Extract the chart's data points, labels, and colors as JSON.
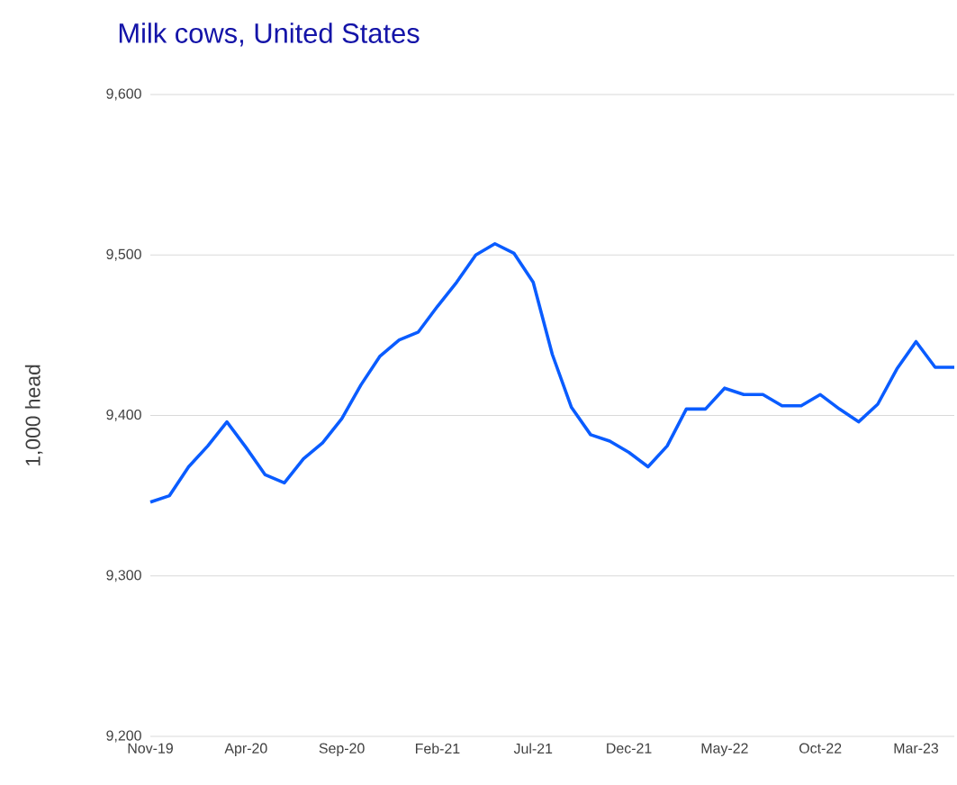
{
  "chart_data": {
    "type": "line",
    "title": "Milk cows, United States",
    "ylabel": "1,000 head",
    "x": [
      "2019-11",
      "2019-12",
      "2020-01",
      "2020-02",
      "2020-03",
      "2020-04",
      "2020-05",
      "2020-06",
      "2020-07",
      "2020-08",
      "2020-09",
      "2020-10",
      "2020-11",
      "2020-12",
      "2021-01",
      "2021-02",
      "2021-03",
      "2021-04",
      "2021-05",
      "2021-06",
      "2021-07",
      "2021-08",
      "2021-09",
      "2021-10",
      "2021-11",
      "2021-12",
      "2022-01",
      "2022-02",
      "2022-03",
      "2022-04",
      "2022-05",
      "2022-06",
      "2022-07",
      "2022-08",
      "2022-09",
      "2022-10",
      "2022-11",
      "2022-12",
      "2023-01",
      "2023-02",
      "2023-03",
      "2023-04",
      "2023-05"
    ],
    "series": [
      {
        "color": "#0a5cff",
        "values": [
          9346,
          9350,
          9368,
          9381,
          9396,
          9380,
          9363,
          9358,
          9373,
          9383,
          9398,
          9419,
          9437,
          9447,
          9452,
          9468,
          9483,
          9500,
          9507,
          9501,
          9483,
          9438,
          9405,
          9388,
          9384,
          9377,
          9368,
          9381,
          9404,
          9404,
          9417,
          9413,
          9413,
          9406,
          9406,
          9413,
          9404,
          9396,
          9407,
          9429,
          9446,
          9430,
          9430
        ]
      }
    ],
    "xlim": [
      "2019-11",
      "2023-05"
    ],
    "xticks": [
      {
        "value": "2019-11",
        "label": "Nov-19"
      },
      {
        "value": "2020-04",
        "label": "Apr-20"
      },
      {
        "value": "2020-09",
        "label": "Sep-20"
      },
      {
        "value": "2021-02",
        "label": "Feb-21"
      },
      {
        "value": "2021-07",
        "label": "Jul-21"
      },
      {
        "value": "2021-12",
        "label": "Dec-21"
      },
      {
        "value": "2022-05",
        "label": "May-22"
      },
      {
        "value": "2022-10",
        "label": "Oct-22"
      },
      {
        "value": "2023-03",
        "label": "Mar-23"
      }
    ],
    "ylim": [
      9200,
      9600
    ],
    "yticks": [
      {
        "value": 9200,
        "label": "9,200"
      },
      {
        "value": 9300,
        "label": "9,300"
      },
      {
        "value": 9400,
        "label": "9,400"
      },
      {
        "value": 9500,
        "label": "9,500"
      },
      {
        "value": 9600,
        "label": "9,600"
      }
    ],
    "grid": "y",
    "marker": "none",
    "line_style": "solid"
  }
}
